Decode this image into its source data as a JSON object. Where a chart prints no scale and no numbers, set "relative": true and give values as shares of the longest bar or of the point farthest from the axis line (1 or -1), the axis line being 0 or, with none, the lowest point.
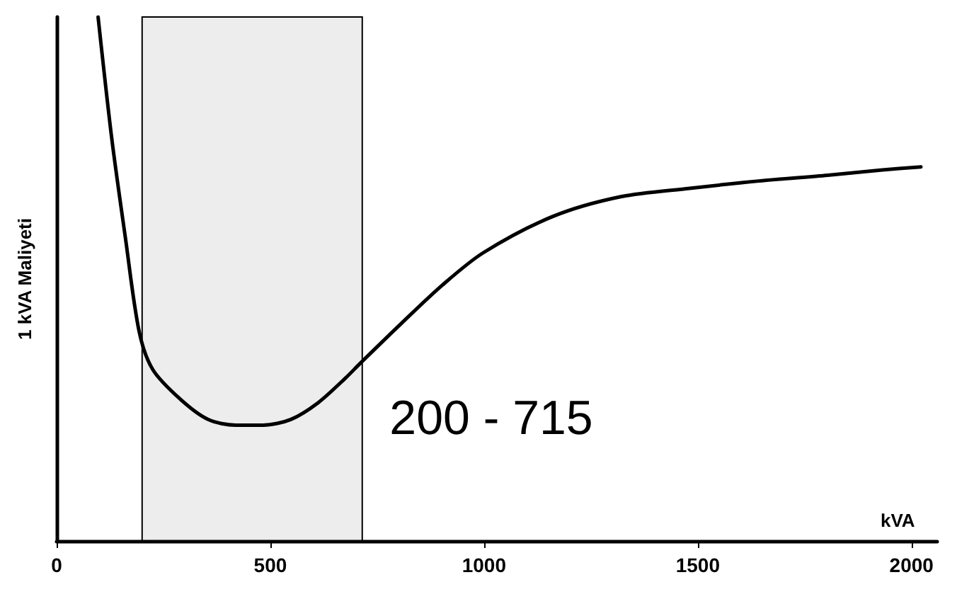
{
  "chart_data": {
    "type": "line",
    "relative": true,
    "xlabel": "kVA",
    "ylabel": "1 kVA Maliyeti",
    "x": [
      97,
      129,
      161,
      193,
      225,
      290,
      354,
      419,
      483,
      548,
      612,
      676,
      709,
      805,
      902,
      998,
      1160,
      1320,
      1481,
      1643,
      1804,
      1932,
      2022
    ],
    "series": [
      {
        "color": "#000000",
        "values": [
          1.0,
          0.768,
          0.578,
          0.4,
          0.327,
          0.27,
          0.232,
          0.221,
          0.221,
          0.232,
          0.264,
          0.311,
          0.338,
          0.414,
          0.488,
          0.55,
          0.619,
          0.657,
          0.673,
          0.687,
          0.698,
          0.708,
          0.714
        ]
      }
    ],
    "xlim": [
      0,
      2060
    ],
    "xticks": [
      0,
      500,
      1000,
      1500,
      2000
    ],
    "bands": [
      {
        "axis": "x",
        "from": 200,
        "to": 715,
        "label": "200 - 715"
      }
    ],
    "grid": false,
    "marker": "none",
    "line_style": "solid"
  }
}
